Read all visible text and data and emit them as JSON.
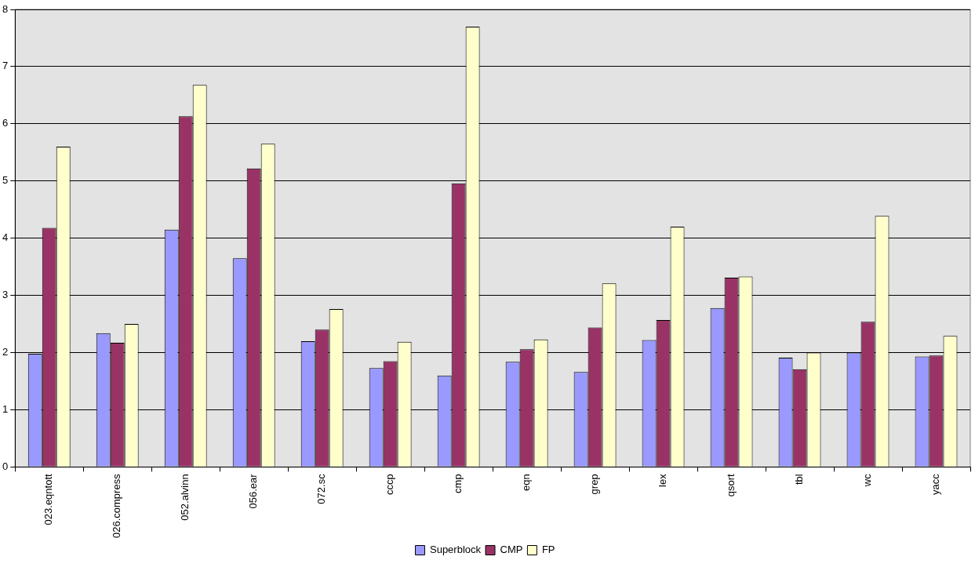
{
  "chart_data": {
    "type": "bar",
    "categories": [
      "023.eqntott",
      "026.compress",
      "052.alvinn",
      "056.ear",
      "072.sc",
      "cccp",
      "cmp",
      "eqn",
      "grep",
      "lex",
      "qsort",
      "tbl",
      "wc",
      "yacc"
    ],
    "series": [
      {
        "name": "Superblock",
        "color": "#9999ff",
        "values": [
          1.98,
          2.34,
          4.15,
          3.65,
          2.2,
          1.73,
          1.6,
          1.84,
          1.66,
          2.22,
          2.78,
          1.91,
          2.0,
          1.93
        ]
      },
      {
        "name": "CMP",
        "color": "#993366",
        "values": [
          4.18,
          2.17,
          6.13,
          5.22,
          2.4,
          1.85,
          4.96,
          2.06,
          2.44,
          2.57,
          3.31,
          1.71,
          2.54,
          1.95
        ]
      },
      {
        "name": "FP",
        "color": "#ffffcc",
        "values": [
          5.6,
          2.5,
          6.68,
          5.65,
          2.76,
          2.19,
          7.7,
          2.23,
          3.21,
          4.2,
          3.33,
          2.0,
          4.39,
          2.29
        ]
      }
    ],
    "ylim": [
      0,
      8
    ],
    "yticks": [
      0,
      1,
      2,
      3,
      4,
      5,
      6,
      7,
      8
    ],
    "grid": "y",
    "legend": "bottom"
  }
}
